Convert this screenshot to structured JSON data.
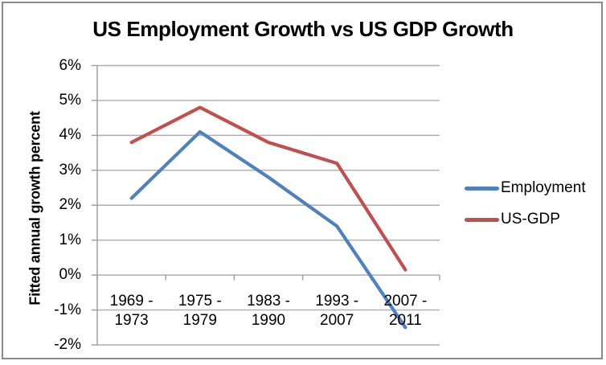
{
  "chart_data": {
    "type": "line",
    "title": "US Employment Growth vs US GDP Growth",
    "ylabel": "Fitted annual growth percent",
    "xlabel": "",
    "categories": [
      "1969 - 1973",
      "1975 - 1979",
      "1983 - 1990",
      "1993 - 2007",
      "2007 - 2011"
    ],
    "category_label_lines": [
      [
        "1969 -",
        "1973"
      ],
      [
        "1975 -",
        "1979"
      ],
      [
        "1983 -",
        "1990"
      ],
      [
        "1993 -",
        "2007"
      ],
      [
        "2007 -",
        "2011"
      ]
    ],
    "series": [
      {
        "name": "Employment",
        "color": "#4F81BD",
        "values": [
          2.2,
          4.1,
          2.8,
          1.4,
          -1.5
        ]
      },
      {
        "name": "US-GDP",
        "color": "#C0504D",
        "values": [
          3.8,
          4.8,
          3.8,
          3.2,
          0.15
        ]
      }
    ],
    "ylim": [
      -2,
      6
    ],
    "y_tick_step": 1,
    "y_tick_labels": [
      "6%",
      "5%",
      "4%",
      "3%",
      "2%",
      "1%",
      "0%",
      "-1%",
      "-2%"
    ],
    "grid": true,
    "legend_position": "right",
    "colors": {
      "gridline": "#ADADAD",
      "axis": "#9B9B9B",
      "frame_border": "#8A8A8A",
      "text": "#000000",
      "background": "#FFFFFF"
    }
  }
}
